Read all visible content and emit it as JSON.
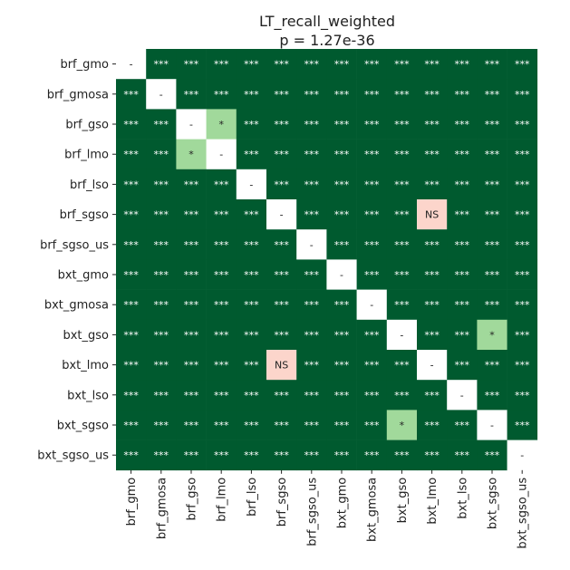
{
  "chart_data": {
    "type": "heatmap",
    "title": "LT_recall_weighted",
    "subtitle": "p = 1.27e-36",
    "labels": [
      "brf_gmo",
      "brf_gmosa",
      "brf_gso",
      "brf_lmo",
      "brf_lso",
      "brf_sgso",
      "brf_sgso_us",
      "bxt_gmo",
      "bxt_gmosa",
      "bxt_gso",
      "bxt_lmo",
      "bxt_lso",
      "bxt_sgso",
      "bxt_sgso_us"
    ],
    "matrix": [
      [
        "-",
        "***",
        "***",
        "***",
        "***",
        "***",
        "***",
        "***",
        "***",
        "***",
        "***",
        "***",
        "***",
        "***"
      ],
      [
        "***",
        "-",
        "***",
        "***",
        "***",
        "***",
        "***",
        "***",
        "***",
        "***",
        "***",
        "***",
        "***",
        "***"
      ],
      [
        "***",
        "***",
        "-",
        "*",
        "***",
        "***",
        "***",
        "***",
        "***",
        "***",
        "***",
        "***",
        "***",
        "***"
      ],
      [
        "***",
        "***",
        "*",
        "-",
        "***",
        "***",
        "***",
        "***",
        "***",
        "***",
        "***",
        "***",
        "***",
        "***"
      ],
      [
        "***",
        "***",
        "***",
        "***",
        "-",
        "***",
        "***",
        "***",
        "***",
        "***",
        "***",
        "***",
        "***",
        "***"
      ],
      [
        "***",
        "***",
        "***",
        "***",
        "***",
        "-",
        "***",
        "***",
        "***",
        "***",
        "NS",
        "***",
        "***",
        "***"
      ],
      [
        "***",
        "***",
        "***",
        "***",
        "***",
        "***",
        "-",
        "***",
        "***",
        "***",
        "***",
        "***",
        "***",
        "***"
      ],
      [
        "***",
        "***",
        "***",
        "***",
        "***",
        "***",
        "***",
        "-",
        "***",
        "***",
        "***",
        "***",
        "***",
        "***"
      ],
      [
        "***",
        "***",
        "***",
        "***",
        "***",
        "***",
        "***",
        "***",
        "-",
        "***",
        "***",
        "***",
        "***",
        "***"
      ],
      [
        "***",
        "***",
        "***",
        "***",
        "***",
        "***",
        "***",
        "***",
        "***",
        "-",
        "***",
        "***",
        "*",
        "***"
      ],
      [
        "***",
        "***",
        "***",
        "***",
        "***",
        "NS",
        "***",
        "***",
        "***",
        "***",
        "-",
        "***",
        "***",
        "***"
      ],
      [
        "***",
        "***",
        "***",
        "***",
        "***",
        "***",
        "***",
        "***",
        "***",
        "***",
        "***",
        "-",
        "***",
        "***"
      ],
      [
        "***",
        "***",
        "***",
        "***",
        "***",
        "***",
        "***",
        "***",
        "***",
        "*",
        "***",
        "***",
        "-",
        "***"
      ],
      [
        "***",
        "***",
        "***",
        "***",
        "***",
        "***",
        "***",
        "***",
        "***",
        "***",
        "***",
        "***",
        "***",
        "-"
      ]
    ],
    "colors": {
      "***": "#005a2f",
      "**": "#238b45",
      "*": "#a1d99b",
      "NS": "#fcd5cb",
      "-": "#ffffff"
    },
    "text_colors": {
      "***": "#ffffff",
      "**": "#ffffff",
      "*": "#222222",
      "NS": "#222222",
      "-": "#222222"
    },
    "legend": "none",
    "grid": false
  }
}
